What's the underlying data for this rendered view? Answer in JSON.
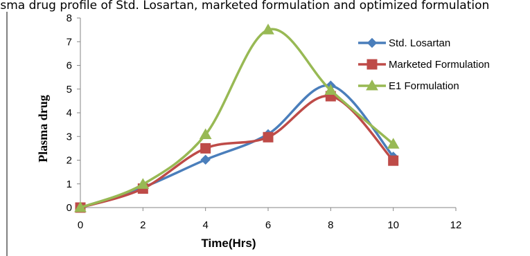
{
  "page": {
    "title": "Plasma drug profile of Std. Losartan, marketed formulation and optimized formulation"
  },
  "chart_data": {
    "type": "line",
    "title": "Plasma drug profile of Std. Losartan, marketed formulation and optimized formulation",
    "xlabel": "Time(Hrs)",
    "ylabel": "Plasma drug",
    "xlim": [
      0,
      12
    ],
    "ylim": [
      0,
      8
    ],
    "xticks": [
      0,
      2,
      4,
      6,
      8,
      10,
      12
    ],
    "yticks": [
      0,
      1,
      2,
      3,
      4,
      5,
      6,
      7,
      8
    ],
    "grid": false,
    "legend_position": "right",
    "x": [
      0,
      2,
      4,
      6,
      8,
      10
    ],
    "series": [
      {
        "name": "Std. Losartan",
        "values": [
          0,
          0.85,
          2.02,
          3.1,
          5.15,
          2.15
        ],
        "color": "#4a7ebb",
        "marker": "diamond"
      },
      {
        "name": "Marketed Formulation",
        "values": [
          0,
          0.8,
          2.5,
          2.97,
          4.7,
          1.98
        ],
        "color": "#be4b48",
        "marker": "square"
      },
      {
        "name": "E1 Formulation",
        "values": [
          0,
          0.98,
          3.08,
          7.5,
          4.95,
          2.68
        ],
        "color": "#98b954",
        "marker": "triangle"
      }
    ]
  }
}
